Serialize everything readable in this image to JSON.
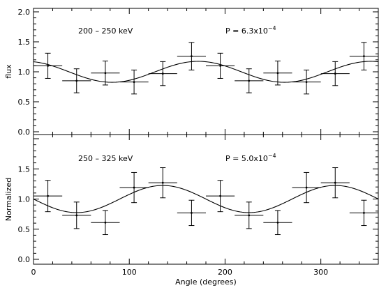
{
  "chart_data": [
    {
      "type": "scatter",
      "panel_label": "200 – 250 keV",
      "polarization_label": "P = 6.3x10",
      "polarization_exponent": "−4",
      "ylabel": "flux",
      "xlim": [
        0,
        360
      ],
      "ylim": [
        0.0,
        2.0
      ],
      "y_ticks": [
        "0.0",
        "0.5",
        "1.0",
        "1.5",
        "2.0"
      ],
      "grid": false,
      "series": [
        {
          "type": "errorbar",
          "x": [
            15,
            45,
            75,
            105,
            135,
            165,
            195,
            225,
            255,
            285,
            315,
            345
          ],
          "y": [
            1.1,
            0.85,
            0.98,
            0.83,
            0.97,
            1.26,
            1.1,
            0.85,
            0.98,
            0.83,
            0.97,
            1.26
          ],
          "xerr": 15,
          "yerr": [
            0.21,
            0.2,
            0.2,
            0.2,
            0.2,
            0.23,
            0.21,
            0.2,
            0.2,
            0.2,
            0.2,
            0.23
          ]
        },
        {
          "type": "line",
          "model": "a + b*cos(2*(x - phi))",
          "a": 1.0,
          "b": 0.175,
          "phi": 172
        }
      ]
    },
    {
      "type": "scatter",
      "panel_label": "250 – 325 keV",
      "polarization_label": "P = 5.0x10",
      "polarization_exponent": "−4",
      "ylabel": "Normalized",
      "xlabel": "Angle (degrees)",
      "xlim": [
        0,
        360
      ],
      "ylim": [
        0.0,
        2.0
      ],
      "x_ticks": [
        "0",
        "100",
        "200",
        "300"
      ],
      "y_ticks": [
        "0.0",
        "0.5",
        "1.0",
        "1.5"
      ],
      "grid": false,
      "series": [
        {
          "type": "errorbar",
          "x": [
            15,
            45,
            75,
            105,
            135,
            165,
            195,
            225,
            255,
            285,
            315,
            345
          ],
          "y": [
            1.05,
            0.73,
            0.61,
            1.19,
            1.27,
            0.77,
            1.05,
            0.73,
            0.61,
            1.19,
            1.27,
            0.77
          ],
          "xerr": 15,
          "yerr": [
            0.26,
            0.22,
            0.2,
            0.25,
            0.25,
            0.21,
            0.26,
            0.22,
            0.2,
            0.25,
            0.25,
            0.21
          ]
        },
        {
          "type": "line",
          "model": "a + b*cos(2*(x - phi))",
          "a": 1.0,
          "b": 0.225,
          "phi": 135
        }
      ]
    }
  ]
}
